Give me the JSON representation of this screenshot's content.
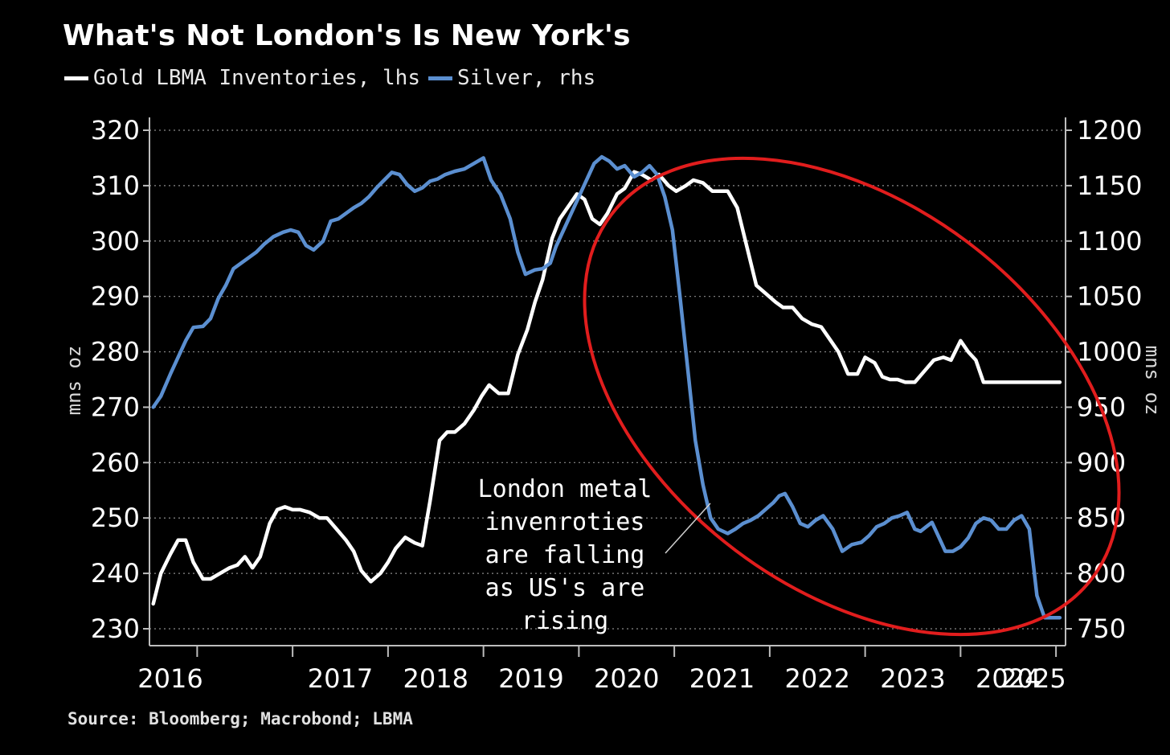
{
  "header": {
    "title": "What's Not London's Is New York's"
  },
  "legend": [
    {
      "label": "Gold LBMA Inventories, lhs",
      "color": "#ffffff"
    },
    {
      "label": "Silver, rhs",
      "color": "#5b8fd0"
    }
  ],
  "footer": {
    "source": "Source: Bloomberg; Macrobond; LBMA"
  },
  "chart_data": {
    "type": "line",
    "title": "What's Not London's Is New York's",
    "left_axis": {
      "label": "mns oz",
      "ylim": [
        230,
        320
      ],
      "ticks": [
        230,
        240,
        250,
        260,
        270,
        280,
        290,
        300,
        310,
        320
      ]
    },
    "right_axis": {
      "label": "mns oz",
      "ylim": [
        750,
        1200
      ],
      "ticks": [
        750,
        800,
        850,
        900,
        950,
        1000,
        1050,
        1100,
        1150,
        1200
      ]
    },
    "x_axis": {
      "xlim": [
        2015.5,
        2025.1
      ],
      "ticks": [
        2016,
        2017,
        2018,
        2019,
        2020,
        2021,
        2022,
        2023,
        2024,
        2025
      ],
      "tick_labels": [
        "2016",
        "2017",
        "2018",
        "2019",
        "2020",
        "2021",
        "2022",
        "2023",
        "2024",
        "2025"
      ]
    },
    "grid": true,
    "annotation": {
      "lines": [
        "London metal",
        "invenroties",
        "are falling",
        "as US's are",
        "rising"
      ]
    },
    "highlight": {
      "shape": "ellipse",
      "color": "#e11d1d"
    },
    "series": [
      {
        "name": "Gold LBMA Inventories, lhs",
        "axis": "left",
        "color": "#ffffff",
        "x": [
          2015.54,
          2015.62,
          2015.72,
          2015.8,
          2015.88,
          2015.96,
          2016.06,
          2016.14,
          2016.24,
          2016.34,
          2016.42,
          2016.5,
          2016.58,
          2016.66,
          2016.76,
          2016.84,
          2016.92,
          2017.0,
          2017.08,
          2017.18,
          2017.28,
          2017.36,
          2017.46,
          2017.56,
          2017.64,
          2017.72,
          2017.82,
          2017.92,
          2018.0,
          2018.08,
          2018.18,
          2018.28,
          2018.36,
          2018.44,
          2018.54,
          2018.62,
          2018.7,
          2018.8,
          2018.9,
          2018.98,
          2019.06,
          2019.16,
          2019.26,
          2019.36,
          2019.46,
          2019.54,
          2019.62,
          2019.72,
          2019.8,
          2019.9,
          2019.98,
          2020.06,
          2020.14,
          2020.22,
          2020.3,
          2020.4,
          2020.48,
          2020.58,
          2020.66,
          2020.76,
          2020.84,
          2020.94,
          2021.02,
          2021.12,
          2021.2,
          2021.3,
          2021.4,
          2021.48,
          2021.56,
          2021.66,
          2021.76,
          2021.86,
          2021.96,
          2022.06,
          2022.14,
          2022.24,
          2022.34,
          2022.44,
          2022.54,
          2022.64,
          2022.72,
          2022.82,
          2022.92,
          2023.0,
          2023.1,
          2023.18,
          2023.26,
          2023.34,
          2023.42,
          2023.52,
          2023.62,
          2023.72,
          2023.82,
          2023.9,
          2024.0,
          2024.08,
          2024.16,
          2024.24,
          2024.32,
          2024.4,
          2024.48,
          2024.56,
          2024.64,
          2024.74,
          2024.84,
          2024.94,
          2025.04
        ],
        "values": [
          234.5,
          240.0,
          243.5,
          246.0,
          246.0,
          242.0,
          239.0,
          239.0,
          240.0,
          241.0,
          241.5,
          243.0,
          241.0,
          243.0,
          249.0,
          251.5,
          252.0,
          251.5,
          251.5,
          251.0,
          250.0,
          250.0,
          248.0,
          246.0,
          244.0,
          240.5,
          238.5,
          240.0,
          242.0,
          244.5,
          246.5,
          245.5,
          245.0,
          253.0,
          264.0,
          265.5,
          265.5,
          267.0,
          269.5,
          272.0,
          274.0,
          272.5,
          272.5,
          279.5,
          284.0,
          289.0,
          293.0,
          300.5,
          304.0,
          306.5,
          308.5,
          307.5,
          304.0,
          303.0,
          305.0,
          308.5,
          309.5,
          312.5,
          312.0,
          311.0,
          312.0,
          310.0,
          309.0,
          310.0,
          311.0,
          310.5,
          309.0,
          309.0,
          309.0,
          306.0,
          299.0,
          292.0,
          290.5,
          289.0,
          288.0,
          288.0,
          286.0,
          285.0,
          284.5,
          282.0,
          280.0,
          276.0,
          276.0,
          279.0,
          278.0,
          275.5,
          275.0,
          275.0,
          274.5,
          274.5,
          276.5,
          278.5,
          279.0,
          278.5,
          282.0,
          280.0,
          278.5,
          274.5,
          274.5,
          274.5,
          274.5,
          274.5,
          274.5,
          274.5,
          274.5,
          274.5,
          274.5
        ]
      },
      {
        "name": "Silver, rhs",
        "axis": "right",
        "color": "#5b8fd0",
        "x": [
          2015.54,
          2015.62,
          2015.72,
          2015.8,
          2015.88,
          2015.96,
          2016.06,
          2016.14,
          2016.22,
          2016.3,
          2016.38,
          2016.46,
          2016.54,
          2016.62,
          2016.7,
          2016.8,
          2016.9,
          2016.98,
          2017.06,
          2017.14,
          2017.22,
          2017.32,
          2017.4,
          2017.48,
          2017.56,
          2017.64,
          2017.72,
          2017.8,
          2017.88,
          2017.96,
          2018.04,
          2018.12,
          2018.2,
          2018.28,
          2018.36,
          2018.44,
          2018.52,
          2018.6,
          2018.7,
          2018.8,
          2018.9,
          2019.0,
          2019.08,
          2019.18,
          2019.28,
          2019.36,
          2019.44,
          2019.54,
          2019.62,
          2019.7,
          2019.76,
          2019.84,
          2019.92,
          2020.0,
          2020.08,
          2020.16,
          2020.24,
          2020.32,
          2020.4,
          2020.48,
          2020.58,
          2020.66,
          2020.74,
          2020.82,
          2020.9,
          2020.98,
          2021.06,
          2021.14,
          2021.22,
          2021.3,
          2021.38,
          2021.46,
          2021.56,
          2021.64,
          2021.72,
          2021.8,
          2021.88,
          2021.96,
          2022.04,
          2022.1,
          2022.16,
          2022.24,
          2022.32,
          2022.4,
          2022.48,
          2022.56,
          2022.66,
          2022.76,
          2022.86,
          2022.96,
          2023.04,
          2023.12,
          2023.2,
          2023.28,
          2023.36,
          2023.44,
          2023.52,
          2023.58,
          2023.64,
          2023.7,
          2023.76,
          2023.84,
          2023.92,
          2024.0,
          2024.08,
          2024.16,
          2024.24,
          2024.32,
          2024.4,
          2024.48,
          2024.56,
          2024.64,
          2024.72,
          2024.8,
          2024.88,
          2024.96,
          2025.04
        ],
        "values": [
          950,
          960,
          980,
          995,
          1010,
          1022,
          1023,
          1030,
          1048,
          1060,
          1075,
          1080,
          1085,
          1090,
          1097,
          1104,
          1108,
          1110,
          1108,
          1096,
          1092,
          1100,
          1118,
          1120,
          1125,
          1130,
          1134,
          1140,
          1148,
          1155,
          1162,
          1160,
          1151,
          1145,
          1148,
          1154,
          1156,
          1160,
          1163,
          1165,
          1170,
          1175,
          1155,
          1142,
          1120,
          1090,
          1070,
          1074,
          1075,
          1080,
          1095,
          1110,
          1125,
          1140,
          1155,
          1170,
          1176,
          1172,
          1165,
          1168,
          1158,
          1162,
          1168,
          1160,
          1140,
          1110,
          1050,
          985,
          920,
          880,
          850,
          840,
          836,
          840,
          845,
          848,
          852,
          858,
          864,
          870,
          872,
          860,
          845,
          842,
          848,
          852,
          840,
          820,
          826,
          828,
          834,
          842,
          845,
          850,
          852,
          855,
          840,
          838,
          842,
          846,
          835,
          820,
          820,
          824,
          832,
          845,
          850,
          848,
          840,
          840,
          848,
          852,
          840,
          780,
          760,
          760,
          760
        ]
      }
    ]
  }
}
